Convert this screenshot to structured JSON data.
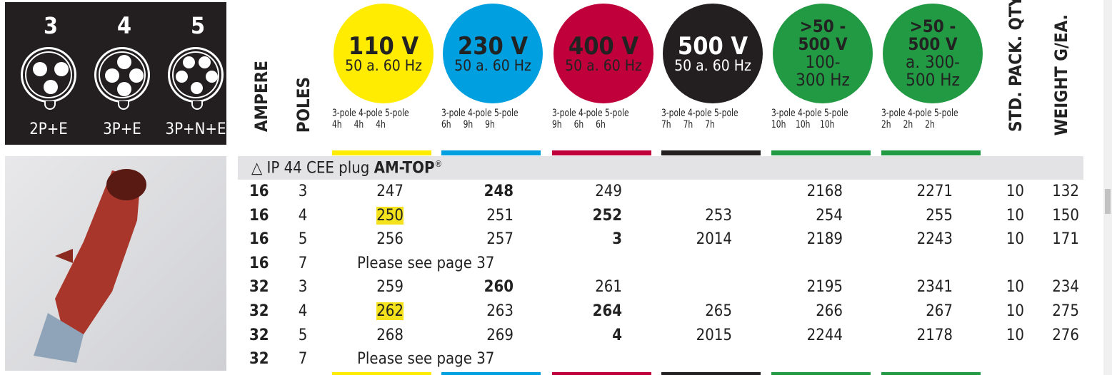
{
  "sockets": [
    {
      "num": "3",
      "label": "2P+E"
    },
    {
      "num": "4",
      "label": "3P+E"
    },
    {
      "num": "5",
      "label": "3P+N+E"
    }
  ],
  "headers": {
    "ampere": "AMPERE",
    "poles": "POLES",
    "qty": "STD. PACK. QTY.",
    "weight": "WEIGHT G/EA."
  },
  "voltages": [
    {
      "lines": [
        "110 V",
        "50 a. 60 Hz"
      ],
      "color": "#ffec00",
      "text": "#222",
      "poles": "3-pole 4-pole 5-pole\n4h     4h     4h"
    },
    {
      "lines": [
        "230 V",
        "50 a. 60 Hz"
      ],
      "color": "#00a0e0",
      "text": "#222",
      "poles": "3-pole 4-pole 5-pole\n6h     9h     9h"
    },
    {
      "lines": [
        "400 V",
        "50 a. 60 Hz"
      ],
      "color": "#c0003a",
      "text": "#222",
      "poles": "3-pole 4-pole 5-pole\n9h     6h     6h"
    },
    {
      "lines": [
        "500 V",
        "50 a. 60 Hz"
      ],
      "color": "#231f20",
      "text": "#fff",
      "poles": "3-pole 4-pole 5-pole\n7h     7h     7h"
    },
    {
      "lines": [
        ">50 -",
        "500 V",
        "100-",
        "300 Hz"
      ],
      "color": "#229a44",
      "text": "#222",
      "poles": "3-pole 4-pole 5-pole\n10h    10h    10h"
    },
    {
      "lines": [
        ">50 -",
        "500 V",
        "a. 300-",
        "500 Hz"
      ],
      "color": "#229a44",
      "text": "#222",
      "poles": "3-pole 4-pole 5-pole\n2h     2h     2h"
    }
  ],
  "section": {
    "icon": "warning-triangle-icon",
    "title": "IP 44 CEE plug ",
    "brand": "AM-TOP",
    "reg": "®"
  },
  "rows": [
    {
      "amp": "16",
      "poles": "3",
      "cells": [
        "247",
        "248",
        "249",
        "",
        "2168",
        "2271"
      ],
      "bold": 1,
      "hl": -1,
      "qty": "10",
      "weight": "132"
    },
    {
      "amp": "16",
      "poles": "4",
      "cells": [
        "250",
        "251",
        "252",
        "253",
        "254",
        "255"
      ],
      "bold": 2,
      "hl": 0,
      "qty": "10",
      "weight": "150"
    },
    {
      "amp": "16",
      "poles": "5",
      "cells": [
        "256",
        "257",
        "3",
        "2014",
        "2189",
        "2243"
      ],
      "bold": 2,
      "hl": -1,
      "qty": "10",
      "weight": "171"
    },
    {
      "amp": "16",
      "poles": "7",
      "note": "Please see page 37"
    },
    {
      "amp": "32",
      "poles": "3",
      "cells": [
        "259",
        "260",
        "261",
        "",
        "2195",
        "2341"
      ],
      "bold": 1,
      "hl": -1,
      "qty": "10",
      "weight": "234"
    },
    {
      "amp": "32",
      "poles": "4",
      "cells": [
        "262",
        "263",
        "264",
        "265",
        "266",
        "267"
      ],
      "bold": 2,
      "hl": 0,
      "qty": "10",
      "weight": "275"
    },
    {
      "amp": "32",
      "poles": "5",
      "cells": [
        "268",
        "269",
        "4",
        "2015",
        "2244",
        "2178"
      ],
      "bold": 2,
      "hl": -1,
      "qty": "10",
      "weight": "276"
    },
    {
      "amp": "32",
      "poles": "7",
      "note": "Please see page 37"
    }
  ]
}
